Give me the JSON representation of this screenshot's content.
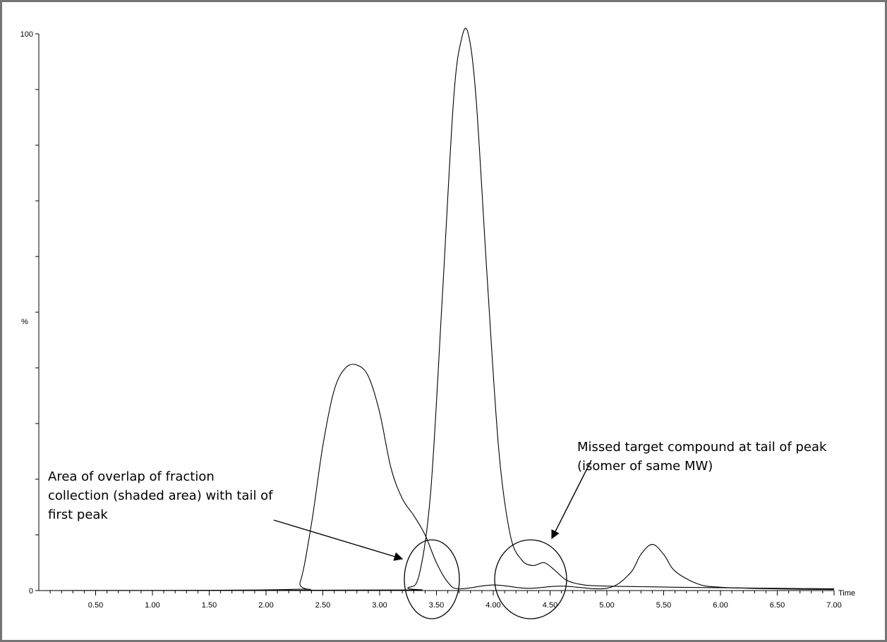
{
  "chart_data": {
    "type": "line",
    "title": "",
    "xlabel": "Time",
    "ylabel": "%",
    "xlim": [
      0,
      7.0
    ],
    "ylim": [
      0,
      100
    ],
    "x_ticks": [
      "0.50",
      "1.00",
      "1.50",
      "2.00",
      "2.50",
      "3.00",
      "3.50",
      "4.00",
      "4.50",
      "5.00",
      "5.50",
      "6.00",
      "6.50",
      "7.00"
    ],
    "y_tick_labels": [
      "0",
      "100"
    ],
    "grid": false,
    "series": [
      {
        "x": [
          0.0,
          2.2,
          2.3,
          2.4,
          2.5,
          2.6,
          2.7,
          2.8,
          2.9,
          3.0,
          3.1,
          3.2,
          3.3,
          3.4,
          3.5,
          3.6,
          3.7,
          4.0,
          4.3,
          4.6,
          5.0,
          5.2,
          5.3,
          5.4,
          5.5,
          5.6,
          5.8,
          6.0,
          6.5,
          7.0
        ],
        "y": [
          0.0,
          0.2,
          1.5,
          12.0,
          26.0,
          36.0,
          40.0,
          40.5,
          38.5,
          32.0,
          22.0,
          16.5,
          13.5,
          10.0,
          5.0,
          1.5,
          0.3,
          1.0,
          0.4,
          0.8,
          0.4,
          3.0,
          6.5,
          8.3,
          6.5,
          3.5,
          1.2,
          0.6,
          0.3,
          0.2
        ]
      },
      {
        "x": [
          0.0,
          3.1,
          3.25,
          3.35,
          3.45,
          3.55,
          3.65,
          3.72,
          3.78,
          3.85,
          3.95,
          4.05,
          4.15,
          4.25,
          4.35,
          4.45,
          4.55,
          4.65,
          4.8,
          5.0,
          5.3,
          5.6,
          6.0,
          6.5,
          7.0
        ],
        "y": [
          0.0,
          0.1,
          0.5,
          3.0,
          18.0,
          52.0,
          88.0,
          99.0,
          100.0,
          88.0,
          55.0,
          25.0,
          10.0,
          5.5,
          4.5,
          5.0,
          3.5,
          1.8,
          1.0,
          0.8,
          0.7,
          0.6,
          0.5,
          0.4,
          0.3
        ]
      }
    ],
    "annotations": [
      {
        "lines": [
          "Area of overlap of fraction",
          "collection (shaded area) with tail of",
          "first peak"
        ]
      },
      {
        "lines": [
          "Missed target compound at tail of peak",
          "(isomer of same MW)"
        ]
      }
    ]
  }
}
